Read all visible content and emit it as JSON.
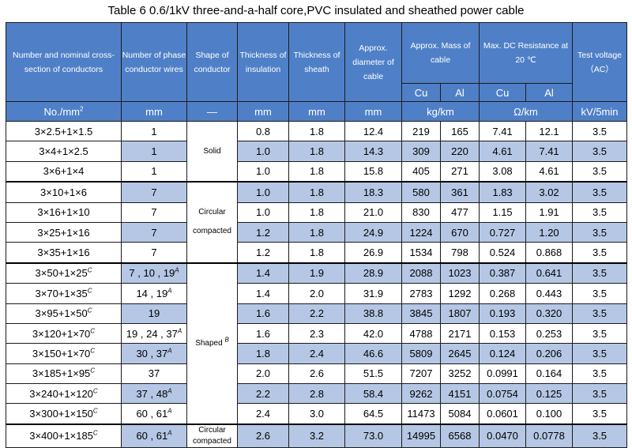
{
  "caption": "Table 6    0.6/1kV three-and-a-half core,PVC insulated and sheathed power cable",
  "headers": {
    "cross_section": "Number and nominal cross-section of conductors",
    "wires": "Number of phase conductor wires",
    "shape": "Shape of conductor",
    "insulation": "Thickness of insulation",
    "sheath": "Thickness of sheath",
    "diameter": "Approx. diameter of cable",
    "mass": "Approx. Mass of cable",
    "resistance": "Max. DC Resistance at 20 ℃",
    "voltage": "Test voltage （AC）",
    "mass_cu": "Cu",
    "mass_al": "Al",
    "res_cu": "Cu",
    "res_al": "Al"
  },
  "units": {
    "cross_section": "No./mm",
    "cross_section_sup": "2",
    "wires": "mm",
    "shape": "—",
    "insulation": "mm",
    "sheath": "mm",
    "diameter": "mm",
    "mass": "kg/km",
    "resistance": "Ω/km",
    "voltage": "kV/5min"
  },
  "shape_groups": {
    "solid": "Solid",
    "circular_compacted_1": "Circular",
    "circular_compacted_2": "compacted",
    "shaped": "Shaped ",
    "shaped_sup": "B",
    "circular_compacted_last": "Circular compacted"
  },
  "rows": [
    {
      "size": "3×2.5+1×1.5",
      "size_sup": "",
      "wires": "1",
      "wires_sup": "",
      "ins": "0.8",
      "sheath": "1.8",
      "dia": "12.4",
      "mcu": "219",
      "mal": "165",
      "rcu": "7.41",
      "ral": "12.1",
      "volt": "3.5"
    },
    {
      "size": "3×4+1×2.5",
      "size_sup": "",
      "wires": "1",
      "wires_sup": "",
      "ins": "1.0",
      "sheath": "1.8",
      "dia": "14.3",
      "mcu": "309",
      "mal": "220",
      "rcu": "4.61",
      "ral": "7.41",
      "volt": "3.5"
    },
    {
      "size": "3×6+1×4",
      "size_sup": "",
      "wires": "1",
      "wires_sup": "",
      "ins": "1.0",
      "sheath": "1.8",
      "dia": "15.8",
      "mcu": "405",
      "mal": "271",
      "rcu": "3.08",
      "ral": "4.61",
      "volt": "3.5"
    },
    {
      "size": "3×10+1×6",
      "size_sup": "",
      "wires": "7",
      "wires_sup": "",
      "ins": "1.0",
      "sheath": "1.8",
      "dia": "18.3",
      "mcu": "580",
      "mal": "361",
      "rcu": "1.83",
      "ral": "3.02",
      "volt": "3.5"
    },
    {
      "size": "3×16+1×10",
      "size_sup": "",
      "wires": "7",
      "wires_sup": "",
      "ins": "1.0",
      "sheath": "1.8",
      "dia": "21.0",
      "mcu": "830",
      "mal": "477",
      "rcu": "1.15",
      "ral": "1.91",
      "volt": "3.5"
    },
    {
      "size": "3×25+1×16",
      "size_sup": "",
      "wires": "7",
      "wires_sup": "",
      "ins": "1.2",
      "sheath": "1.8",
      "dia": "24.9",
      "mcu": "1224",
      "mal": "670",
      "rcu": "0.727",
      "ral": "1.20",
      "volt": "3.5"
    },
    {
      "size": "3×35+1×16",
      "size_sup": "",
      "wires": "7",
      "wires_sup": "",
      "ins": "1.2",
      "sheath": "1.8",
      "dia": "26.9",
      "mcu": "1534",
      "mal": "798",
      "rcu": "0.524",
      "ral": "0.868",
      "volt": "3.5"
    },
    {
      "size": "3×50+1×25",
      "size_sup": "C",
      "wires": "7 , 10 , 19",
      "wires_sup": "A",
      "ins": "1.4",
      "sheath": "1.9",
      "dia": "28.9",
      "mcu": "2088",
      "mal": "1023",
      "rcu": "0.387",
      "ral": "0.641",
      "volt": "3.5"
    },
    {
      "size": "3×70+1×35",
      "size_sup": "C",
      "wires": "14 , 19",
      "wires_sup": "A",
      "ins": "1.4",
      "sheath": "2.0",
      "dia": "31.9",
      "mcu": "2783",
      "mal": "1292",
      "rcu": "0.268",
      "ral": "0.443",
      "volt": "3.5"
    },
    {
      "size": "3×95+1×50",
      "size_sup": "C",
      "wires": "19",
      "wires_sup": "",
      "ins": "1.6",
      "sheath": "2.2",
      "dia": "38.8",
      "mcu": "3845",
      "mal": "1807",
      "rcu": "0.193",
      "ral": "0.320",
      "volt": "3.5"
    },
    {
      "size": "3×120+1×70",
      "size_sup": "C",
      "wires": "19 , 24 , 37",
      "wires_sup": "A",
      "ins": "1.6",
      "sheath": "2.3",
      "dia": "42.0",
      "mcu": "4788",
      "mal": "2171",
      "rcu": "0.153",
      "ral": "0.253",
      "volt": "3.5"
    },
    {
      "size": "3×150+1×70",
      "size_sup": "C",
      "wires": "30 , 37",
      "wires_sup": "A",
      "ins": "1.8",
      "sheath": "2.4",
      "dia": "46.6",
      "mcu": "5809",
      "mal": "2645",
      "rcu": "0.124",
      "ral": "0.206",
      "volt": "3.5"
    },
    {
      "size": "3×185+1×95",
      "size_sup": "C",
      "wires": "37",
      "wires_sup": "",
      "ins": "2.0",
      "sheath": "2.6",
      "dia": "51.5",
      "mcu": "7207",
      "mal": "3252",
      "rcu": "0.0991",
      "ral": "0.164",
      "volt": "3.5"
    },
    {
      "size": "3×240+1×120",
      "size_sup": "C",
      "wires": "37 , 48",
      "wires_sup": "A",
      "ins": "2.2",
      "sheath": "2.8",
      "dia": "58.4",
      "mcu": "9262",
      "mal": "4151",
      "rcu": "0.0754",
      "ral": "0.125",
      "volt": "3.5"
    },
    {
      "size": "3×300+1×150",
      "size_sup": "C",
      "wires": "60 , 61",
      "wires_sup": "A",
      "ins": "2.4",
      "sheath": "3.0",
      "dia": "64.5",
      "mcu": "11473",
      "mal": "5084",
      "rcu": "0.0601",
      "ral": "0.100",
      "volt": "3.5"
    },
    {
      "size": "3×400+1×185",
      "size_sup": "C",
      "wires": "60 , 61",
      "wires_sup": "A",
      "ins": "2.6",
      "sheath": "3.2",
      "dia": "73.0",
      "mcu": "14995",
      "mal": "6568",
      "rcu": "0.0470",
      "ral": "0.0778",
      "volt": "3.5"
    }
  ],
  "colors": {
    "header_blue": "#4f80c7",
    "row_shade": "#b5c7e4",
    "border": "#1b1b1b"
  }
}
